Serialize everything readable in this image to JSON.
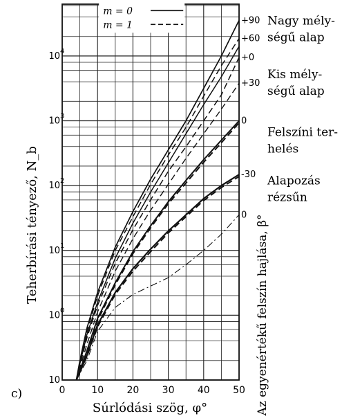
{
  "chart_data": {
    "type": "line",
    "panel_label": "c)",
    "xlabel": "Súrlódási szög, φ°",
    "ylabel": "Teherbírási tényező, N_b",
    "right_axis_label": "Az egyenértékű felszín hajlása, β°",
    "xlim": [
      0,
      50
    ],
    "ylim_log10": [
      -1,
      4.8
    ],
    "x_ticks": [
      0,
      10,
      20,
      30,
      40,
      50
    ],
    "y_tick_labels": [
      {
        "base": "10",
        "exp": "4",
        "log": 4
      },
      {
        "base": "10",
        "exp": "3",
        "log": 3
      },
      {
        "base": "10",
        "exp": "2",
        "log": 2
      },
      {
        "base": "10",
        "exp": "1",
        "log": 1
      },
      {
        "base": "10",
        "exp": "0",
        "log": 0
      },
      {
        "base": "10",
        "exp": "",
        "log": -1
      }
    ],
    "legend": {
      "placement": "top-left",
      "entries": [
        {
          "label": "m = 0",
          "style": "solid"
        },
        {
          "label": "m = 1",
          "style": "dashed"
        }
      ]
    },
    "beta_labels": [
      {
        "text": "+90",
        "log": 4.55
      },
      {
        "text": "+60",
        "log": 4.27
      },
      {
        "text": "+0",
        "log": 3.98
      },
      {
        "text": "+30",
        "log": 3.58
      },
      {
        "text": "0",
        "log": 3.0
      },
      {
        "text": "-30",
        "log": 2.17
      },
      {
        "text": "0",
        "log": 1.55
      }
    ],
    "group_labels": [
      {
        "lines": [
          "Nagy mély-",
          "ségű alap"
        ],
        "log": 4.55
      },
      {
        "lines": [
          "Kis mély-",
          "ségű alap"
        ],
        "log": 3.72
      },
      {
        "lines": [
          "Felszíni ter-",
          "helés"
        ],
        "log": 2.83
      },
      {
        "lines": [
          "Alapozás",
          "rézsűn"
        ],
        "log": 2.08
      }
    ],
    "x": [
      4,
      5,
      7,
      10,
      15,
      20,
      25,
      30,
      35,
      40,
      45,
      50
    ],
    "series": [
      {
        "style": "solid",
        "lw": 1.7,
        "log10_values": [
          -1,
          -0.7,
          -0.2,
          0.35,
          1.05,
          1.6,
          2.1,
          2.55,
          3.0,
          3.5,
          4.0,
          4.55
        ]
      },
      {
        "style": "dashed",
        "lw": 1.5,
        "log10_values": [
          -1,
          -0.72,
          -0.25,
          0.3,
          1.0,
          1.52,
          2.02,
          2.47,
          2.9,
          3.38,
          3.85,
          4.27
        ]
      },
      {
        "style": "solid",
        "lw": 1.5,
        "log10_values": [
          -1,
          -0.75,
          -0.3,
          0.2,
          0.88,
          1.42,
          1.9,
          2.35,
          2.8,
          3.25,
          3.68,
          4.15
        ]
      },
      {
        "style": "dashed",
        "lw": 1.5,
        "log10_values": [
          -1,
          -0.78,
          -0.35,
          0.15,
          0.8,
          1.32,
          1.78,
          2.22,
          2.6,
          3.0,
          3.4,
          3.98
        ]
      },
      {
        "style": "dashed",
        "lw": 1.4,
        "log10_values": [
          -1,
          -0.82,
          -0.45,
          0.05,
          0.68,
          1.18,
          1.62,
          2.02,
          2.42,
          2.8,
          3.18,
          3.58
        ]
      },
      {
        "style": "solid",
        "lw": 2.0,
        "log10_values": [
          -1,
          -0.85,
          -0.55,
          -0.05,
          0.5,
          0.98,
          1.38,
          1.75,
          2.08,
          2.4,
          2.7,
          3.0
        ]
      },
      {
        "style": "dashed",
        "lw": 2.0,
        "log10_values": [
          -1,
          -0.86,
          -0.57,
          -0.08,
          0.47,
          0.95,
          1.35,
          1.72,
          2.04,
          2.36,
          2.66,
          2.97
        ]
      },
      {
        "style": "solid",
        "lw": 2.2,
        "log10_values": [
          -1,
          -0.88,
          -0.62,
          -0.15,
          0.35,
          0.72,
          1.02,
          1.3,
          1.55,
          1.8,
          2.0,
          2.17
        ]
      },
      {
        "style": "dashed",
        "lw": 2.0,
        "log10_values": [
          -1,
          -0.88,
          -0.64,
          -0.18,
          0.32,
          0.68,
          0.98,
          1.27,
          1.52,
          1.77,
          1.97,
          2.14
        ]
      },
      {
        "style": "dashdot",
        "lw": 1.1,
        "log10_values": [
          -1,
          -0.9,
          -0.7,
          -0.25,
          0.12,
          0.32,
          0.45,
          0.58,
          0.78,
          1.0,
          1.25,
          1.55
        ]
      }
    ]
  }
}
